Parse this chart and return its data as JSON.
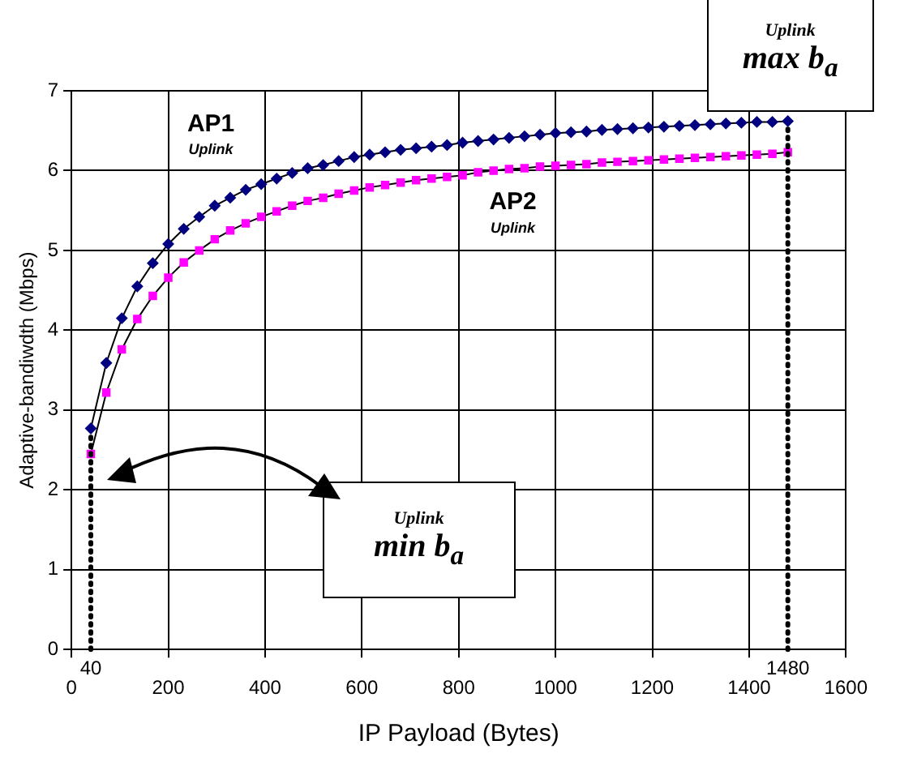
{
  "chart_data": {
    "type": "line",
    "xlabel": "IP Payload (Bytes)",
    "ylabel": "Adaptive-bandiwdth (Mbps)",
    "x": [
      40,
      72,
      104,
      136,
      168,
      200,
      232,
      264,
      296,
      328,
      360,
      392,
      424,
      456,
      488,
      520,
      552,
      584,
      616,
      648,
      680,
      712,
      744,
      776,
      808,
      840,
      872,
      904,
      936,
      968,
      1000,
      1032,
      1064,
      1096,
      1128,
      1160,
      1192,
      1224,
      1256,
      1288,
      1320,
      1352,
      1384,
      1416,
      1448,
      1480
    ],
    "series": [
      {
        "name": "AP1",
        "color": "#000080",
        "marker": "diamond",
        "values": [
          2.77,
          3.59,
          4.15,
          4.55,
          4.84,
          5.08,
          5.27,
          5.42,
          5.56,
          5.66,
          5.76,
          5.83,
          5.9,
          5.97,
          6.03,
          6.07,
          6.12,
          6.17,
          6.2,
          6.23,
          6.26,
          6.28,
          6.3,
          6.32,
          6.35,
          6.37,
          6.39,
          6.41,
          6.43,
          6.45,
          6.47,
          6.48,
          6.49,
          6.51,
          6.52,
          6.53,
          6.54,
          6.55,
          6.56,
          6.57,
          6.58,
          6.59,
          6.6,
          6.61,
          6.61,
          6.62
        ]
      },
      {
        "name": "AP2",
        "color": "#ff00ff",
        "marker": "square",
        "values": [
          2.45,
          3.22,
          3.76,
          4.14,
          4.43,
          4.66,
          4.85,
          5.0,
          5.14,
          5.25,
          5.34,
          5.42,
          5.49,
          5.56,
          5.62,
          5.66,
          5.71,
          5.75,
          5.79,
          5.82,
          5.85,
          5.88,
          5.9,
          5.92,
          5.94,
          5.98,
          6.0,
          6.02,
          6.03,
          6.05,
          6.06,
          6.07,
          6.08,
          6.1,
          6.11,
          6.12,
          6.13,
          6.14,
          6.15,
          6.16,
          6.17,
          6.18,
          6.19,
          6.2,
          6.21,
          6.23
        ]
      }
    ],
    "xlim": [
      0,
      1600
    ],
    "xticks": [
      0,
      200,
      400,
      600,
      800,
      1000,
      1200,
      1400,
      1600
    ],
    "ylim": [
      0,
      7
    ],
    "yticks": [
      0,
      1,
      2,
      3,
      4,
      5,
      6,
      7
    ],
    "grid": true,
    "legend": false,
    "ref_lines": [
      {
        "axis": "x",
        "value": 40,
        "label": "40",
        "color": "#000000",
        "line_style": "dotted"
      },
      {
        "axis": "x",
        "value": 1480,
        "label": "1480",
        "color": "#000000",
        "line_style": "dotted"
      }
    ],
    "annotations": [
      "Uplink",
      "Uplink",
      {
        "text": "Uplink max b$_{a}$",
        "x": 1480,
        "y": 6.62
      },
      "Uplink min b$_{a}$"
    ]
  }
}
